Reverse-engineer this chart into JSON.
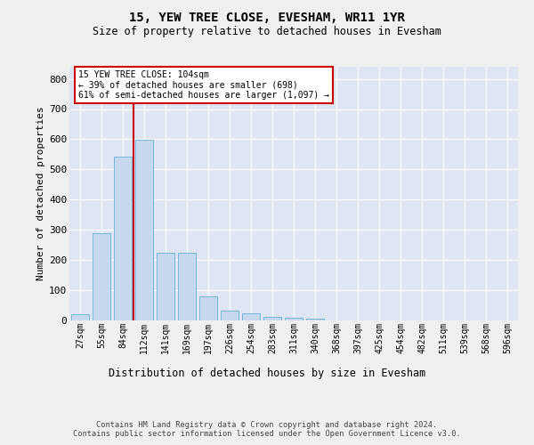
{
  "title": "15, YEW TREE CLOSE, EVESHAM, WR11 1YR",
  "subtitle": "Size of property relative to detached houses in Evesham",
  "xlabel": "Distribution of detached houses by size in Evesham",
  "ylabel": "Number of detached properties",
  "bar_color": "#c5d8ed",
  "bar_edge_color": "#6aaed6",
  "bg_color": "#dde6f2",
  "fig_bg": "#f0f0f0",
  "categories": [
    "27sqm",
    "55sqm",
    "84sqm",
    "112sqm",
    "141sqm",
    "169sqm",
    "197sqm",
    "226sqm",
    "254sqm",
    "283sqm",
    "311sqm",
    "340sqm",
    "368sqm",
    "397sqm",
    "425sqm",
    "454sqm",
    "482sqm",
    "511sqm",
    "539sqm",
    "568sqm",
    "596sqm"
  ],
  "values": [
    22,
    290,
    543,
    597,
    223,
    223,
    80,
    33,
    23,
    13,
    10,
    6,
    0,
    0,
    0,
    0,
    0,
    0,
    0,
    0,
    0
  ],
  "ylim": [
    0,
    840
  ],
  "yticks": [
    0,
    100,
    200,
    300,
    400,
    500,
    600,
    700,
    800
  ],
  "vline_x": 2.5,
  "vline_color": "#cc0000",
  "ann_line1": "15 YEW TREE CLOSE: 104sqm",
  "ann_line2": "← 39% of detached houses are smaller (698)",
  "ann_line3": "61% of semi-detached houses are larger (1,097) →",
  "ann_box_fc": "#ffffff",
  "ann_box_ec": "#cc0000",
  "footer1": "Contains HM Land Registry data © Crown copyright and database right 2024.",
  "footer2": "Contains public sector information licensed under the Open Government Licence v3.0."
}
